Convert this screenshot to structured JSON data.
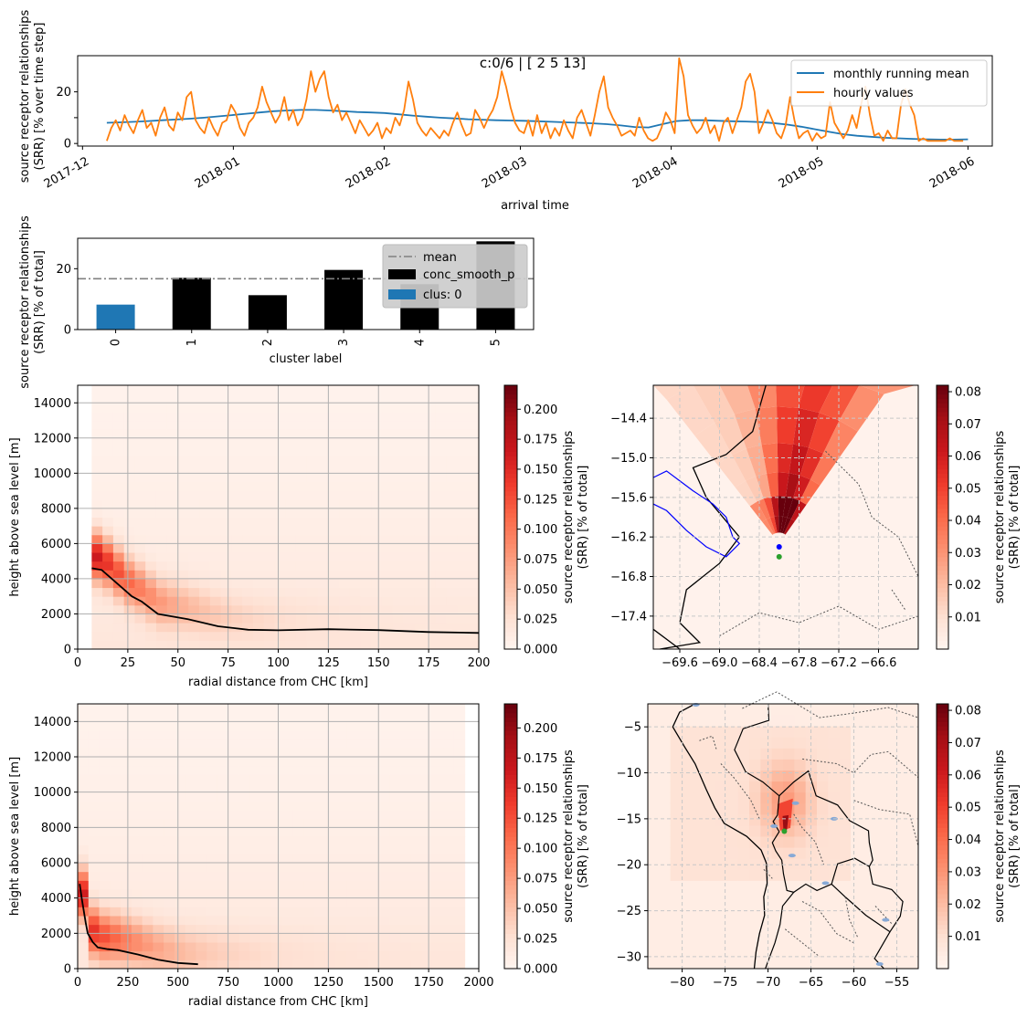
{
  "figure": {
    "title": "c:0/6 | [ 2  5 13]"
  },
  "chart_data": [
    {
      "id": "timeseries",
      "type": "line",
      "xlabel": "arrival time",
      "ylabel_lines": [
        "source receptor relationships",
        "(SRR) [% over time step]"
      ],
      "x_ticks": [
        "2017-12",
        "2018-01",
        "2018-02",
        "2018-03",
        "2018-04",
        "2018-05",
        "2018-06"
      ],
      "xlim": [
        "2017-11-30",
        "2018-06-06"
      ],
      "ylim": [
        -1,
        34
      ],
      "y_ticks": [
        0,
        10,
        20
      ],
      "y_ticks_labeled": [
        0,
        20
      ],
      "legend_position": "top-right",
      "colors": {
        "series_0": "#1f77b4",
        "series_1": "#ff7f0e"
      },
      "series": [
        {
          "name": "monthly running mean",
          "x_start": "2017-12-06",
          "x_end": "2018-06-01",
          "values": [
            8.0,
            8.2,
            8.4,
            8.7,
            9.0,
            9.3,
            9.6,
            10.0,
            10.5,
            11.0,
            11.5,
            12.0,
            12.5,
            12.8,
            13.0,
            13.0,
            12.8,
            12.5,
            12.2,
            12.0,
            11.8,
            11.3,
            10.8,
            10.4,
            10.0,
            9.7,
            9.4,
            9.2,
            9.0,
            8.9,
            8.8,
            8.6,
            8.4,
            8.2,
            8.0,
            7.8,
            7.5,
            7.0,
            6.4,
            6.2,
            7.5,
            8.7,
            9.0,
            9.0,
            8.8,
            8.6,
            8.5,
            8.3,
            7.9,
            7.3,
            6.5,
            5.5,
            4.5,
            3.6,
            3.0,
            2.6,
            2.2,
            2.0,
            1.8,
            1.6,
            1.5,
            1.5,
            1.6
          ]
        },
        {
          "name": "hourly values",
          "x_start": "2017-12-06",
          "x_end": "2018-05-31",
          "values": [
            1,
            6,
            9,
            5,
            11,
            7,
            4,
            9,
            13,
            6,
            8,
            3,
            10,
            14,
            7,
            5,
            12,
            9,
            18,
            20,
            9,
            6,
            4,
            10,
            6,
            3,
            8,
            9,
            15,
            12,
            6,
            3,
            8,
            10,
            14,
            22,
            16,
            12,
            8,
            11,
            18,
            9,
            13,
            7,
            10,
            17,
            28,
            20,
            25,
            28,
            18,
            12,
            15,
            9,
            12,
            8,
            4,
            9,
            6,
            3,
            5,
            8,
            2,
            6,
            4,
            10,
            7,
            13,
            24,
            17,
            8,
            5,
            3,
            6,
            4,
            2,
            5,
            3,
            8,
            12,
            7,
            3,
            4,
            13,
            10,
            6,
            10,
            13,
            18,
            28,
            22,
            14,
            8,
            5,
            4,
            9,
            3,
            11,
            4,
            8,
            2,
            6,
            3,
            9,
            5,
            2,
            10,
            13,
            8,
            3,
            11,
            20,
            26,
            14,
            10,
            7,
            3,
            4,
            5,
            3,
            10,
            5,
            2,
            1,
            2,
            6,
            12,
            9,
            4,
            33,
            26,
            11,
            7,
            4,
            6,
            10,
            4,
            7,
            1,
            8,
            10,
            4,
            9,
            14,
            24,
            27,
            20,
            4,
            8,
            13,
            9,
            4,
            2,
            7,
            18,
            9,
            2,
            4,
            5,
            1,
            4,
            2,
            3,
            16,
            8,
            5,
            2,
            5,
            11,
            6,
            15,
            22,
            11,
            3,
            4,
            1,
            5,
            2,
            2,
            15,
            21,
            15,
            11,
            1,
            2,
            1,
            1,
            1,
            1,
            1,
            2,
            1,
            1,
            1
          ]
        }
      ],
      "title_note": ""
    },
    {
      "id": "cluster_bars",
      "type": "bar",
      "xlabel": "cluster label",
      "ylabel_lines": [
        "source receptor relationships",
        "(SRR) [% of total]"
      ],
      "categories": [
        "0",
        "1",
        "2",
        "3",
        "4",
        "5"
      ],
      "values": [
        8.2,
        17.0,
        11.3,
        19.6,
        14.9,
        29.0
      ],
      "mean": 16.7,
      "ylim": [
        0,
        30
      ],
      "y_ticks": [
        0,
        20
      ],
      "highlight_category": "0",
      "colors": {
        "bars": "#000000",
        "highlight": "#1f77b4",
        "mean": "#808080",
        "legend_bg": "#cccccc"
      },
      "legend_position": "top-right",
      "legend": [
        "mean",
        "conc_smooth_p",
        "clus: 0"
      ]
    },
    {
      "id": "height_profile_near",
      "type": "heatmap",
      "xlabel": "radial distance from CHC [km]",
      "ylabel": "height above sea level [m]",
      "xlim": [
        0,
        200
      ],
      "ylim": [
        0,
        15000
      ],
      "x_ticks": [
        0,
        25,
        50,
        75,
        100,
        125,
        150,
        175,
        200
      ],
      "y_ticks": [
        0,
        2000,
        4000,
        6000,
        8000,
        10000,
        12000,
        14000
      ],
      "colorbar": {
        "label_lines": [
          "source receptor relationships",
          "(SRR) [% of total]"
        ],
        "ticks": [
          "0.000",
          "0.025",
          "0.050",
          "0.075",
          "0.100",
          "0.125",
          "0.150",
          "0.175",
          "0.200"
        ],
        "range": [
          0,
          0.22
        ],
        "colormap": "Reds"
      },
      "grid": true,
      "line_x": [
        7,
        12,
        17,
        22,
        27,
        32,
        40,
        55,
        70,
        85,
        100,
        125,
        150,
        175,
        200
      ],
      "line_y": [
        4600,
        4500,
        4000,
        3500,
        3000,
        2700,
        2000,
        1700,
        1300,
        1100,
        1070,
        1130,
        1080,
        970,
        920
      ]
    },
    {
      "id": "height_profile_far",
      "type": "heatmap",
      "xlabel": "radial distance from CHC [km]",
      "ylabel": "height above sea level [m]",
      "xlim": [
        0,
        2000
      ],
      "ylim": [
        0,
        15000
      ],
      "x_ticks": [
        0,
        250,
        500,
        750,
        1000,
        1250,
        1500,
        1750,
        2000
      ],
      "y_ticks": [
        0,
        2000,
        4000,
        6000,
        8000,
        10000,
        12000,
        14000
      ],
      "colorbar": {
        "label_lines": [
          "source receptor relationships",
          "(SRR) [% of total]"
        ],
        "ticks": [
          "0.000",
          "0.025",
          "0.050",
          "0.075",
          "0.100",
          "0.125",
          "0.150",
          "0.175",
          "0.200"
        ],
        "range": [
          0,
          0.22
        ],
        "colormap": "Reds"
      },
      "grid": true,
      "line_x": [
        10,
        20,
        30,
        40,
        50,
        75,
        100,
        150,
        200,
        300,
        400,
        500,
        600
      ],
      "line_y": [
        4800,
        4000,
        3300,
        2600,
        2000,
        1500,
        1200,
        1100,
        1050,
        800,
        500,
        320,
        250
      ]
    },
    {
      "id": "map_near",
      "type": "heatmap",
      "xlim": [
        -70.0,
        -66.0
      ],
      "ylim": [
        -17.9,
        -13.9
      ],
      "x_ticks": [
        -69.6,
        -69.0,
        -68.4,
        -67.8,
        -67.2,
        -66.6
      ],
      "y_ticks": [
        -17.4,
        -16.8,
        -16.2,
        -15.6,
        -15.0,
        -14.4
      ],
      "x_tick_labels": [
        "−69.6",
        "−69.0",
        "−68.4",
        "−67.8",
        "−67.2",
        "−66.6"
      ],
      "y_tick_labels": [
        "−17.4",
        "−16.8",
        "−16.2",
        "−15.6",
        "−15.0",
        "−14.4"
      ],
      "station": {
        "lon": -68.1,
        "lat": -16.35,
        "color": "#0000ff"
      },
      "site": {
        "lon": -68.1,
        "lat": -16.5,
        "color": "#2ca02c"
      },
      "colorbar": {
        "label_lines": [
          "source receptor relationships",
          "(SRR) [% of total]"
        ],
        "ticks": [
          "0.01",
          "0.02",
          "0.03",
          "0.04",
          "0.05",
          "0.06",
          "0.07",
          "0.08"
        ],
        "range": [
          0,
          0.082
        ],
        "colormap": "Reds"
      },
      "grid": true
    },
    {
      "id": "map_far",
      "type": "heatmap",
      "xlim": [
        -84,
        -52.5
      ],
      "ylim": [
        -31.3,
        -2.5
      ],
      "x_ticks": [
        -80,
        -75,
        -70,
        -65,
        -60,
        -55
      ],
      "y_ticks": [
        -30,
        -25,
        -20,
        -15,
        -10,
        -5
      ],
      "x_tick_labels": [
        "−80",
        "−75",
        "−70",
        "−65",
        "−60",
        "−55"
      ],
      "y_tick_labels": [
        "−30",
        "−25",
        "−20",
        "−15",
        "−10",
        "−5"
      ],
      "site": {
        "lon": -68.1,
        "lat": -16.35,
        "color": "#2ca02c"
      },
      "colorbar": {
        "label_lines": [
          "source receptor relationships",
          "(SRR) [% of total]"
        ],
        "ticks": [
          "0.01",
          "0.02",
          "0.03",
          "0.04",
          "0.05",
          "0.06",
          "0.07",
          "0.08"
        ],
        "range": [
          0,
          0.082
        ],
        "colormap": "Reds"
      },
      "grid": true
    }
  ]
}
